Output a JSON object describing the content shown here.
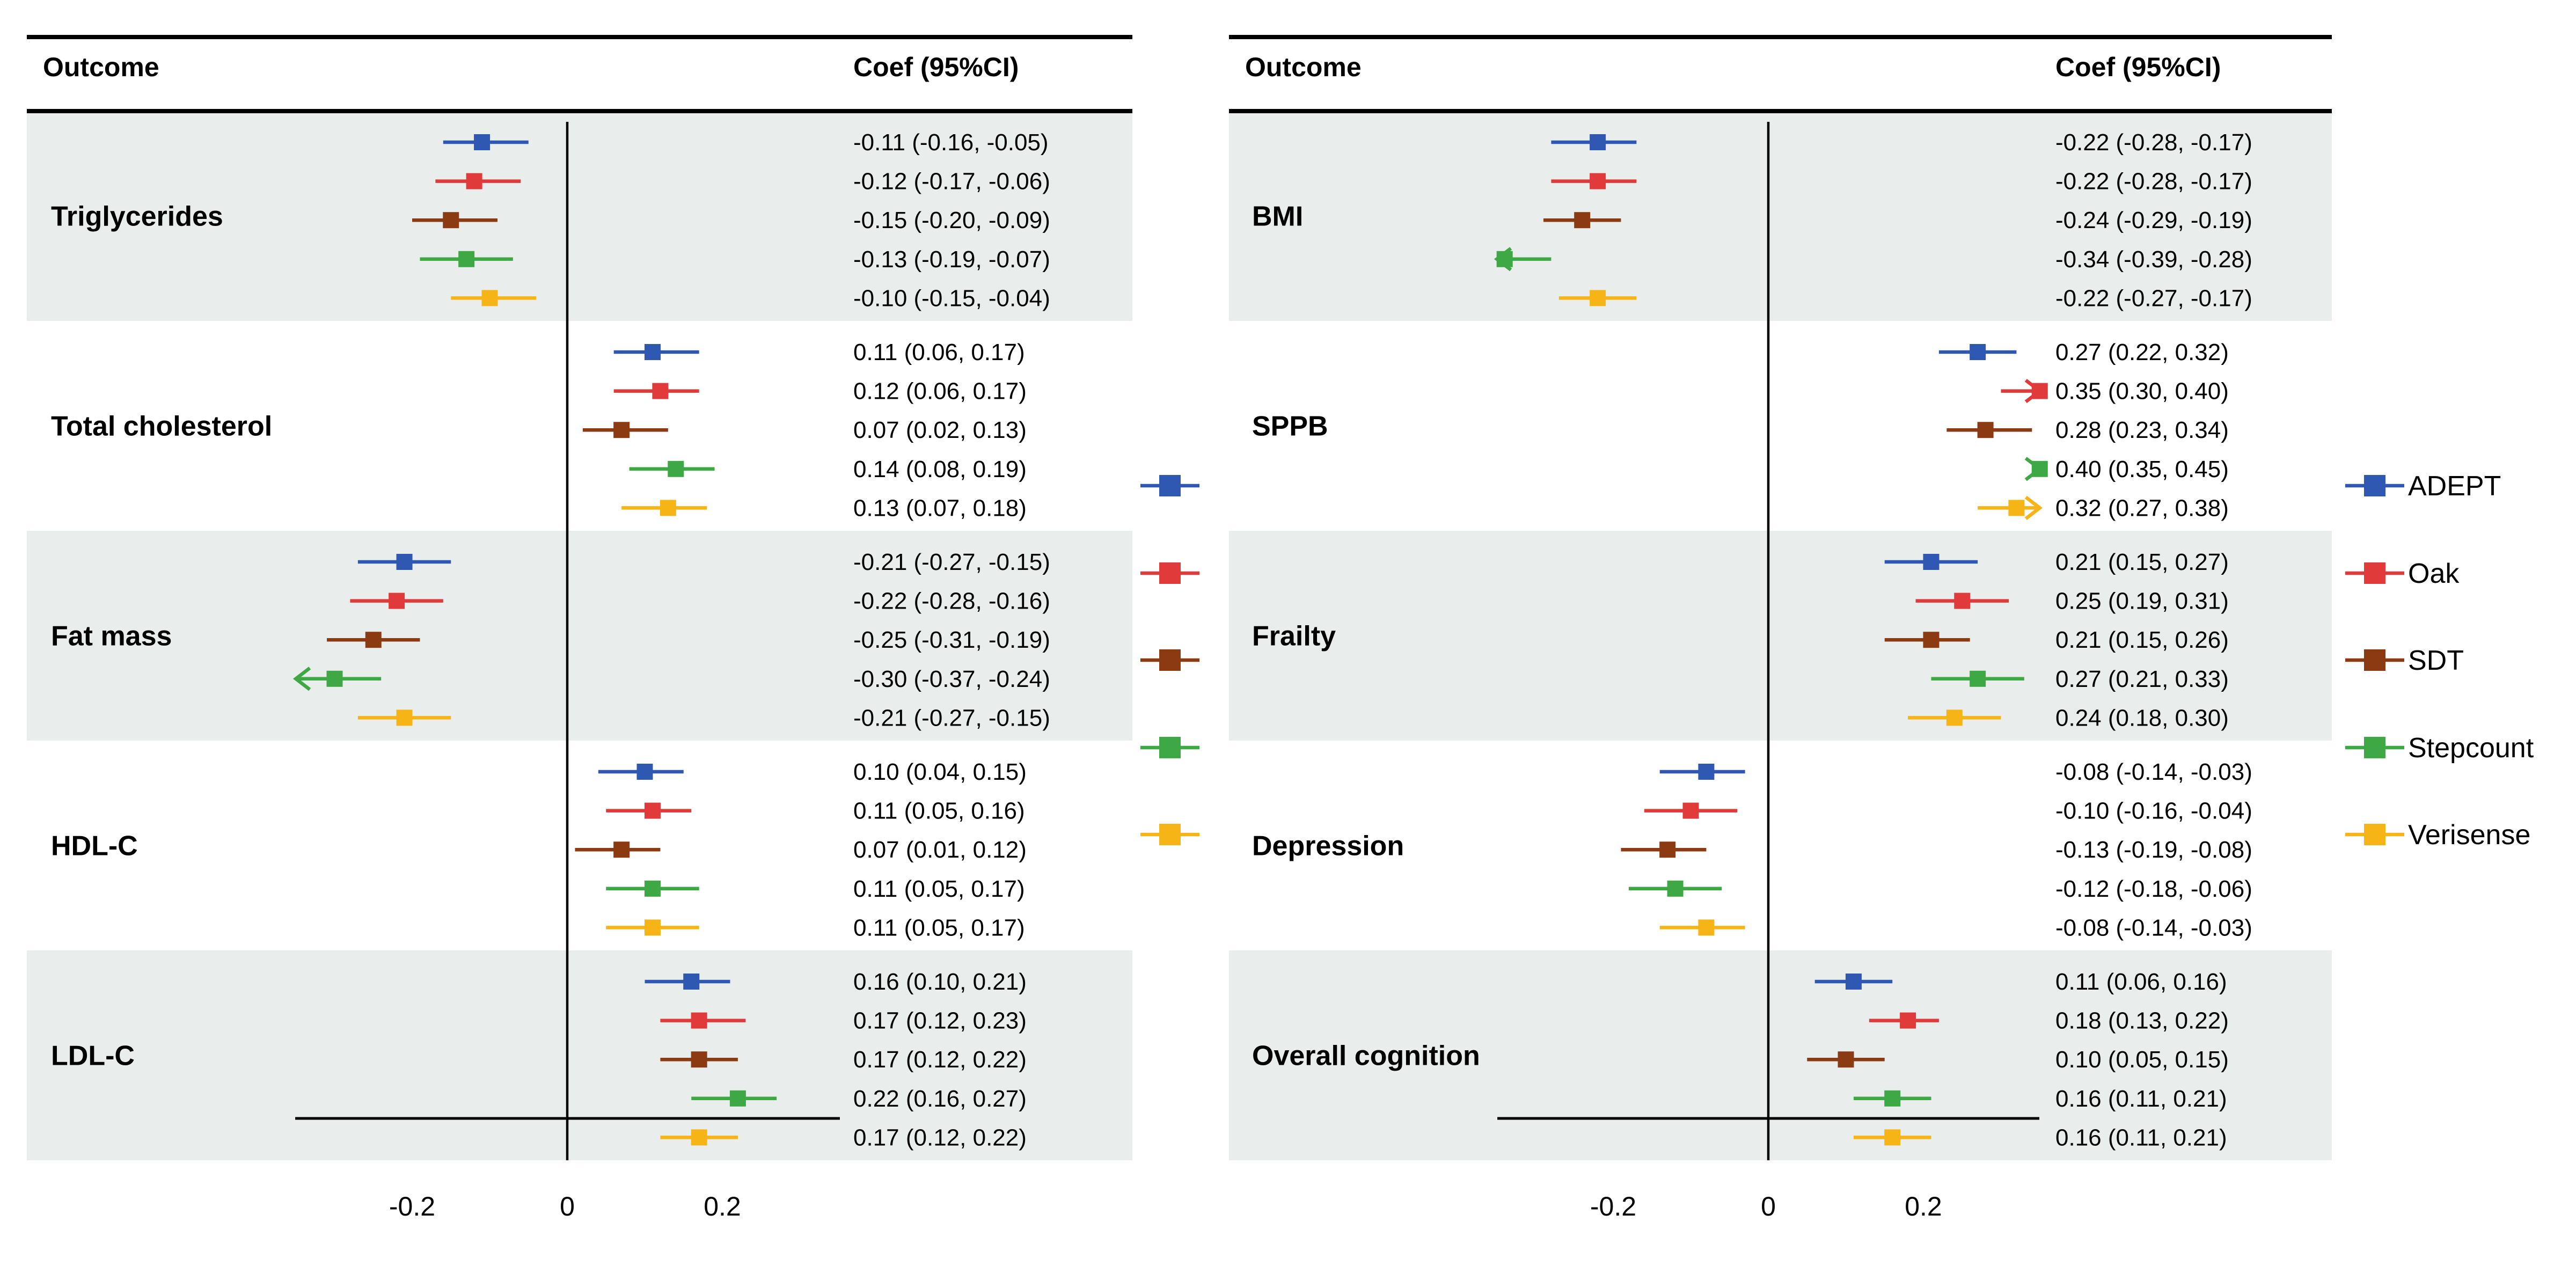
{
  "chart_data": {
    "type": "forest",
    "header_outcome": "Outcome",
    "header_coef": "Coef (95%CI)",
    "axis_ticks": [
      -0.2,
      0,
      0.2
    ],
    "axis_tick_labels": [
      "-0.2",
      "0",
      "0.2"
    ],
    "xlim": [
      -0.35,
      0.35
    ],
    "reference_line": 0,
    "legend_position": "right",
    "series": [
      {
        "name": "ADEPT",
        "color": "#2f58b3"
      },
      {
        "name": "Oak",
        "color": "#e03a3a"
      },
      {
        "name": "SDT",
        "color": "#8b3a12"
      },
      {
        "name": "Stepcount",
        "color": "#3ea844"
      },
      {
        "name": "Verisense",
        "color": "#f7b416"
      }
    ],
    "panels": [
      {
        "outcomes": [
          {
            "name": "Triglycerides",
            "shaded": true,
            "rows": [
              {
                "coef": -0.11,
                "lo": -0.16,
                "hi": -0.05,
                "label": "-0.11 (-0.16, -0.05)"
              },
              {
                "coef": -0.12,
                "lo": -0.17,
                "hi": -0.06,
                "label": "-0.12 (-0.17, -0.06)"
              },
              {
                "coef": -0.15,
                "lo": -0.2,
                "hi": -0.09,
                "label": "-0.15 (-0.20, -0.09)"
              },
              {
                "coef": -0.13,
                "lo": -0.19,
                "hi": -0.07,
                "label": "-0.13 (-0.19, -0.07)"
              },
              {
                "coef": -0.1,
                "lo": -0.15,
                "hi": -0.04,
                "label": "-0.10 (-0.15, -0.04)"
              }
            ]
          },
          {
            "name": "Total cholesterol",
            "shaded": false,
            "rows": [
              {
                "coef": 0.11,
                "lo": 0.06,
                "hi": 0.17,
                "label": "0.11 (0.06, 0.17)"
              },
              {
                "coef": 0.12,
                "lo": 0.06,
                "hi": 0.17,
                "label": "0.12 (0.06, 0.17)"
              },
              {
                "coef": 0.07,
                "lo": 0.02,
                "hi": 0.13,
                "label": "0.07 (0.02, 0.13)"
              },
              {
                "coef": 0.14,
                "lo": 0.08,
                "hi": 0.19,
                "label": "0.14 (0.08, 0.19)"
              },
              {
                "coef": 0.13,
                "lo": 0.07,
                "hi": 0.18,
                "label": "0.13 (0.07, 0.18)"
              }
            ]
          },
          {
            "name": "Fat mass",
            "shaded": true,
            "rows": [
              {
                "coef": -0.21,
                "lo": -0.27,
                "hi": -0.15,
                "label": "-0.21 (-0.27, -0.15)"
              },
              {
                "coef": -0.22,
                "lo": -0.28,
                "hi": -0.16,
                "label": "-0.22 (-0.28, -0.16)"
              },
              {
                "coef": -0.25,
                "lo": -0.31,
                "hi": -0.19,
                "label": "-0.25 (-0.31, -0.19)"
              },
              {
                "coef": -0.3,
                "lo": -0.37,
                "hi": -0.24,
                "label": "-0.30 (-0.37, -0.24)"
              },
              {
                "coef": -0.21,
                "lo": -0.27,
                "hi": -0.15,
                "label": "-0.21 (-0.27, -0.15)"
              }
            ]
          },
          {
            "name": "HDL-C",
            "shaded": false,
            "rows": [
              {
                "coef": 0.1,
                "lo": 0.04,
                "hi": 0.15,
                "label": "0.10 (0.04, 0.15)"
              },
              {
                "coef": 0.11,
                "lo": 0.05,
                "hi": 0.16,
                "label": "0.11 (0.05, 0.16)"
              },
              {
                "coef": 0.07,
                "lo": 0.01,
                "hi": 0.12,
                "label": "0.07 (0.01, 0.12)"
              },
              {
                "coef": 0.11,
                "lo": 0.05,
                "hi": 0.17,
                "label": "0.11 (0.05, 0.17)"
              },
              {
                "coef": 0.11,
                "lo": 0.05,
                "hi": 0.17,
                "label": "0.11 (0.05, 0.17)"
              }
            ]
          },
          {
            "name": "LDL-C",
            "shaded": true,
            "rows": [
              {
                "coef": 0.16,
                "lo": 0.1,
                "hi": 0.21,
                "label": "0.16 (0.10, 0.21)"
              },
              {
                "coef": 0.17,
                "lo": 0.12,
                "hi": 0.23,
                "label": "0.17 (0.12, 0.23)"
              },
              {
                "coef": 0.17,
                "lo": 0.12,
                "hi": 0.22,
                "label": "0.17 (0.12, 0.22)"
              },
              {
                "coef": 0.22,
                "lo": 0.16,
                "hi": 0.27,
                "label": "0.22 (0.16, 0.27)"
              },
              {
                "coef": 0.17,
                "lo": 0.12,
                "hi": 0.22,
                "label": "0.17 (0.12, 0.22)"
              }
            ]
          }
        ]
      },
      {
        "outcomes": [
          {
            "name": "BMI",
            "shaded": true,
            "rows": [
              {
                "coef": -0.22,
                "lo": -0.28,
                "hi": -0.17,
                "label": "-0.22 (-0.28, -0.17)"
              },
              {
                "coef": -0.22,
                "lo": -0.28,
                "hi": -0.17,
                "label": "-0.22 (-0.28, -0.17)"
              },
              {
                "coef": -0.24,
                "lo": -0.29,
                "hi": -0.19,
                "label": "-0.24 (-0.29, -0.19)"
              },
              {
                "coef": -0.34,
                "lo": -0.39,
                "hi": -0.28,
                "label": "-0.34 (-0.39, -0.28)"
              },
              {
                "coef": -0.22,
                "lo": -0.27,
                "hi": -0.17,
                "label": "-0.22 (-0.27, -0.17)"
              }
            ]
          },
          {
            "name": "SPPB",
            "shaded": false,
            "rows": [
              {
                "coef": 0.27,
                "lo": 0.22,
                "hi": 0.32,
                "label": "0.27 (0.22, 0.32)"
              },
              {
                "coef": 0.35,
                "lo": 0.3,
                "hi": 0.4,
                "label": "0.35 (0.30, 0.40)"
              },
              {
                "coef": 0.28,
                "lo": 0.23,
                "hi": 0.34,
                "label": "0.28 (0.23, 0.34)"
              },
              {
                "coef": 0.4,
                "lo": 0.35,
                "hi": 0.45,
                "label": "0.40 (0.35, 0.45)"
              },
              {
                "coef": 0.32,
                "lo": 0.27,
                "hi": 0.38,
                "label": "0.32 (0.27, 0.38)"
              }
            ]
          },
          {
            "name": "Frailty",
            "shaded": true,
            "rows": [
              {
                "coef": 0.21,
                "lo": 0.15,
                "hi": 0.27,
                "label": "0.21 (0.15, 0.27)"
              },
              {
                "coef": 0.25,
                "lo": 0.19,
                "hi": 0.31,
                "label": "0.25 (0.19, 0.31)"
              },
              {
                "coef": 0.21,
                "lo": 0.15,
                "hi": 0.26,
                "label": "0.21 (0.15, 0.26)"
              },
              {
                "coef": 0.27,
                "lo": 0.21,
                "hi": 0.33,
                "label": "0.27 (0.21, 0.33)"
              },
              {
                "coef": 0.24,
                "lo": 0.18,
                "hi": 0.3,
                "label": "0.24 (0.18, 0.30)"
              }
            ]
          },
          {
            "name": "Depression",
            "shaded": false,
            "rows": [
              {
                "coef": -0.08,
                "lo": -0.14,
                "hi": -0.03,
                "label": "-0.08 (-0.14, -0.03)"
              },
              {
                "coef": -0.1,
                "lo": -0.16,
                "hi": -0.04,
                "label": "-0.10 (-0.16, -0.04)"
              },
              {
                "coef": -0.13,
                "lo": -0.19,
                "hi": -0.08,
                "label": "-0.13 (-0.19, -0.08)"
              },
              {
                "coef": -0.12,
                "lo": -0.18,
                "hi": -0.06,
                "label": "-0.12 (-0.18, -0.06)"
              },
              {
                "coef": -0.08,
                "lo": -0.14,
                "hi": -0.03,
                "label": "-0.08 (-0.14, -0.03)"
              }
            ]
          },
          {
            "name": "Overall cognition",
            "shaded": true,
            "rows": [
              {
                "coef": 0.11,
                "lo": 0.06,
                "hi": 0.16,
                "label": "0.11 (0.06, 0.16)"
              },
              {
                "coef": 0.18,
                "lo": 0.13,
                "hi": 0.22,
                "label": "0.18 (0.13, 0.22)"
              },
              {
                "coef": 0.1,
                "lo": 0.05,
                "hi": 0.15,
                "label": "0.10 (0.05, 0.15)"
              },
              {
                "coef": 0.16,
                "lo": 0.11,
                "hi": 0.21,
                "label": "0.16 (0.11, 0.21)"
              },
              {
                "coef": 0.16,
                "lo": 0.11,
                "hi": 0.21,
                "label": "0.16 (0.11, 0.21)"
              }
            ]
          }
        ]
      }
    ]
  }
}
